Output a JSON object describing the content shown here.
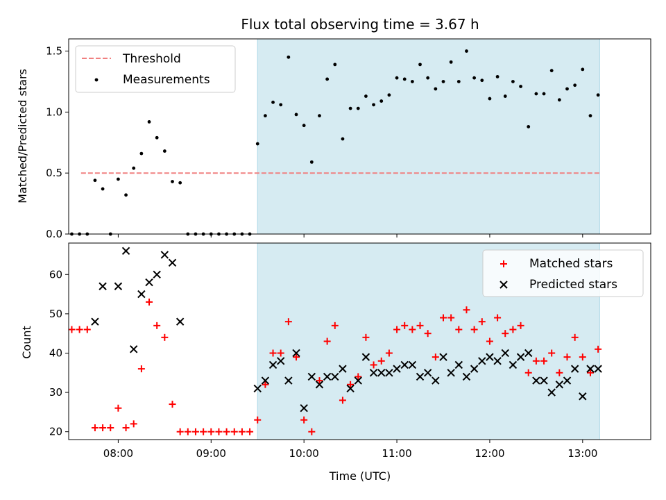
{
  "chart_data": {
    "title": "Flux total observing time = 3.67 h",
    "xlabel": "Time (UTC)",
    "xtick_labels": [
      "08:00",
      "09:00",
      "10:00",
      "11:00",
      "12:00",
      "13:00"
    ],
    "xlim": [
      "07:28",
      "13:44"
    ],
    "observing_window": [
      "09:30",
      "13:11"
    ],
    "observing_window_color": "#add8e6",
    "panels": [
      {
        "type": "scatter",
        "ylabel": "Matched/Predicted stars",
        "ylim": [
          0,
          1.6
        ],
        "yticks": [
          "0.0",
          "0.5",
          "1.0",
          "1.5"
        ],
        "legend_position": "upper left",
        "threshold": {
          "name": "Threshold",
          "value": 0.5,
          "x_range": [
            "07:36",
            "13:11"
          ],
          "color": "#f08080"
        },
        "series": [
          {
            "name": "Measurements",
            "color": "#000000",
            "marker": "dot",
            "x": [
              "07:30",
              "07:35",
              "07:40",
              "07:45",
              "07:50",
              "07:55",
              "08:00",
              "08:05",
              "08:10",
              "08:15",
              "08:20",
              "08:25",
              "08:30",
              "08:35",
              "08:40",
              "08:45",
              "08:50",
              "08:55",
              "09:00",
              "09:05",
              "09:10",
              "09:15",
              "09:20",
              "09:25",
              "09:30",
              "09:35",
              "09:40",
              "09:45",
              "09:50",
              "09:55",
              "10:00",
              "10:05",
              "10:10",
              "10:15",
              "10:20",
              "10:25",
              "10:30",
              "10:35",
              "10:40",
              "10:45",
              "10:50",
              "10:55",
              "11:00",
              "11:05",
              "11:10",
              "11:15",
              "11:20",
              "11:25",
              "11:30",
              "11:35",
              "11:40",
              "11:45",
              "11:50",
              "11:55",
              "12:00",
              "12:05",
              "12:10",
              "12:15",
              "12:20",
              "12:25",
              "12:30",
              "12:35",
              "12:40",
              "12:45",
              "12:50",
              "12:55",
              "13:00",
              "13:05",
              "13:10"
            ],
            "y": [
              0,
              0,
              0,
              0.44,
              0.37,
              0,
              0.45,
              0.32,
              0.54,
              0.66,
              0.92,
              0.79,
              0.68,
              0.43,
              0.42,
              0,
              0,
              0,
              0,
              0,
              0,
              0,
              0,
              0,
              0.74,
              0.97,
              1.08,
              1.06,
              1.45,
              0.98,
              0.89,
              0.59,
              0.97,
              1.27,
              1.39,
              0.78,
              1.03,
              1.03,
              1.13,
              1.06,
              1.09,
              1.14,
              1.28,
              1.27,
              1.25,
              1.39,
              1.28,
              1.19,
              1.25,
              1.41,
              1.25,
              1.5,
              1.28,
              1.26,
              1.11,
              1.29,
              1.13,
              1.25,
              1.21,
              0.88,
              1.15,
              1.15,
              1.34,
              1.1,
              1.19,
              1.22,
              1.35,
              0.97,
              1.14
            ]
          }
        ]
      },
      {
        "type": "scatter",
        "ylabel": "Count",
        "ylim": [
          18,
          68
        ],
        "yticks": [
          "20",
          "30",
          "40",
          "50",
          "60"
        ],
        "legend_position": "upper right",
        "series": [
          {
            "name": "Matched stars",
            "color": "#ff0000",
            "marker": "plus",
            "x": [
              "07:30",
              "07:35",
              "07:40",
              "07:45",
              "07:50",
              "07:55",
              "08:00",
              "08:05",
              "08:10",
              "08:15",
              "08:20",
              "08:25",
              "08:30",
              "08:35",
              "08:40",
              "08:45",
              "08:50",
              "08:55",
              "09:00",
              "09:05",
              "09:10",
              "09:15",
              "09:20",
              "09:25",
              "09:30",
              "09:35",
              "09:40",
              "09:45",
              "09:50",
              "09:55",
              "10:00",
              "10:05",
              "10:10",
              "10:15",
              "10:20",
              "10:25",
              "10:30",
              "10:35",
              "10:40",
              "10:45",
              "10:50",
              "10:55",
              "11:00",
              "11:05",
              "11:10",
              "11:15",
              "11:20",
              "11:25",
              "11:30",
              "11:35",
              "11:40",
              "11:45",
              "11:50",
              "11:55",
              "12:00",
              "12:05",
              "12:10",
              "12:15",
              "12:20",
              "12:25",
              "12:30",
              "12:35",
              "12:40",
              "12:45",
              "12:50",
              "12:55",
              "13:00",
              "13:05",
              "13:10"
            ],
            "y": [
              46,
              46,
              46,
              21,
              21,
              21,
              26,
              21,
              22,
              36,
              53,
              47,
              44,
              27,
              20,
              20,
              20,
              20,
              20,
              20,
              20,
              20,
              20,
              20,
              23,
              32,
              40,
              40,
              48,
              39,
              23,
              20,
              33,
              43,
              47,
              28,
              32,
              34,
              44,
              37,
              38,
              40,
              46,
              47,
              46,
              47,
              45,
              39,
              49,
              49,
              46,
              51,
              46,
              48,
              43,
              49,
              45,
              46,
              47,
              35,
              38,
              38,
              40,
              35,
              39,
              44,
              39,
              35,
              41
            ]
          },
          {
            "name": "Predicted stars",
            "color": "#000000",
            "marker": "x",
            "x": [
              "07:45",
              "07:50",
              "08:00",
              "08:05",
              "08:10",
              "08:15",
              "08:20",
              "08:25",
              "08:30",
              "08:35",
              "08:40",
              "09:30",
              "09:35",
              "09:40",
              "09:45",
              "09:50",
              "09:55",
              "10:00",
              "10:05",
              "10:10",
              "10:15",
              "10:20",
              "10:25",
              "10:30",
              "10:35",
              "10:40",
              "10:45",
              "10:50",
              "10:55",
              "11:00",
              "11:05",
              "11:10",
              "11:15",
              "11:20",
              "11:25",
              "11:30",
              "11:35",
              "11:40",
              "11:45",
              "11:50",
              "11:55",
              "12:00",
              "12:05",
              "12:10",
              "12:15",
              "12:20",
              "12:25",
              "12:30",
              "12:35",
              "12:40",
              "12:45",
              "12:50",
              "12:55",
              "13:00",
              "13:05",
              "13:10"
            ],
            "y": [
              48,
              57,
              57,
              66,
              41,
              55,
              58,
              60,
              65,
              63,
              48,
              31,
              33,
              37,
              38,
              33,
              40,
              26,
              34,
              32,
              34,
              34,
              36,
              31,
              33,
              39,
              35,
              35,
              35,
              36,
              37,
              37,
              34,
              35,
              33,
              39,
              35,
              37,
              34,
              36,
              38,
              39,
              38,
              40,
              37,
              39,
              40,
              33,
              33,
              30,
              32,
              33,
              36,
              29,
              36,
              36
            ]
          }
        ]
      }
    ]
  }
}
